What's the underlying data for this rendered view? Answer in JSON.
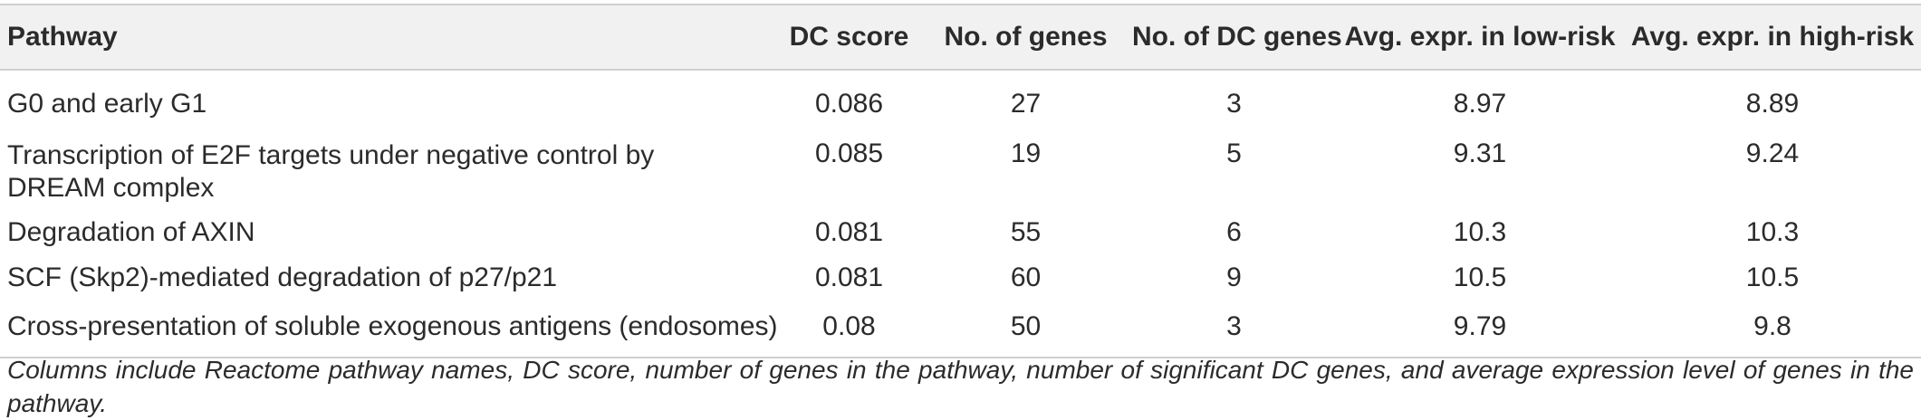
{
  "table": {
    "headers": [
      "Pathway",
      "DC score",
      "No. of genes",
      "No. of DC genes",
      "Avg. expr. in low-risk",
      "Avg. expr. in high-risk"
    ],
    "rows": [
      [
        "G0 and early G1",
        "0.086",
        "27",
        "3",
        "8.97",
        "8.89"
      ],
      [
        "Transcription of E2F targets under negative control by DREAM complex",
        "0.085",
        "19",
        "5",
        "9.31",
        "9.24"
      ],
      [
        "Degradation of AXIN",
        "0.081",
        "55",
        "6",
        "10.3",
        "10.3"
      ],
      [
        "SCF (Skp2)-mediated degradation of p27/p21",
        "0.081",
        "60",
        "9",
        "10.5",
        "10.5"
      ],
      [
        "Cross-presentation of soluble exogenous antigens (endosomes)",
        "0.08",
        "50",
        "3",
        "9.79",
        "9.8"
      ]
    ]
  },
  "caption": "Columns include Reactome pathway names, DC score, number of genes in the pathway, number of significant DC genes, and average expression level of genes in the pathway."
}
